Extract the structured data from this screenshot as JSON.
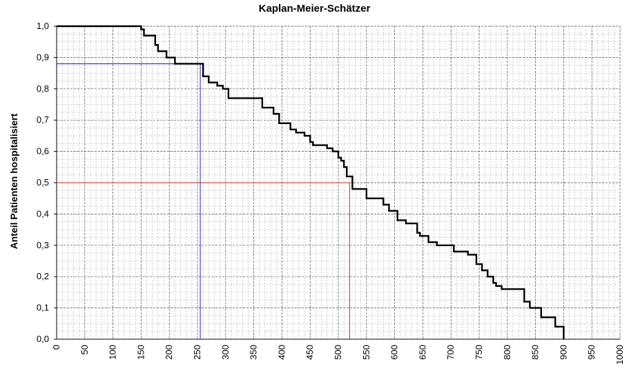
{
  "chart_data": {
    "type": "line",
    "title": "Kaplan-Meier-Schätzer",
    "xlabel": "",
    "ylabel": "Anteil Patienten hospitalisiert",
    "xlim": [
      0,
      1000
    ],
    "ylim": [
      0,
      1
    ],
    "x_ticks": [
      "0",
      "50",
      "100",
      "150",
      "200",
      "250",
      "300",
      "350",
      "400",
      "450",
      "500",
      "550",
      "600",
      "650",
      "700",
      "750",
      "800",
      "850",
      "900",
      "950",
      "1000"
    ],
    "y_ticks": [
      "0,0",
      "0,1",
      "0,2",
      "0,3",
      "0,4",
      "0,5",
      "0,6",
      "0,7",
      "0,8",
      "0,9",
      "1,0"
    ],
    "grid": true,
    "series": [
      {
        "x": [
          0,
          150,
          155,
          160,
          175,
          180,
          195,
          210,
          255,
          260,
          270,
          285,
          295,
          305,
          335,
          365,
          385,
          395,
          415,
          425,
          440,
          450,
          455,
          480,
          490,
          500,
          505,
          510,
          515,
          525,
          550,
          580,
          590,
          605,
          620,
          640,
          645,
          660,
          675,
          705,
          730,
          745,
          755,
          765,
          775,
          780,
          790,
          830,
          840,
          860,
          885,
          900
        ],
        "y": [
          1.0,
          0.99,
          0.97,
          0.97,
          0.94,
          0.92,
          0.9,
          0.88,
          0.88,
          0.84,
          0.82,
          0.81,
          0.8,
          0.77,
          0.77,
          0.74,
          0.72,
          0.69,
          0.67,
          0.66,
          0.65,
          0.63,
          0.62,
          0.61,
          0.6,
          0.58,
          0.57,
          0.55,
          0.52,
          0.48,
          0.45,
          0.43,
          0.41,
          0.38,
          0.37,
          0.34,
          0.33,
          0.31,
          0.3,
          0.28,
          0.27,
          0.24,
          0.22,
          0.2,
          0.18,
          0.17,
          0.16,
          0.12,
          0.1,
          0.07,
          0.04,
          0.0
        ]
      }
    ],
    "reference_lines": [
      {
        "color": "#2222aa",
        "y": 0.88,
        "x": 255
      },
      {
        "color": "#cc2222",
        "y": 0.5,
        "x": 520
      }
    ]
  },
  "colors": {
    "curve": "#000000",
    "grid": "#9a9a9a",
    "ref_blue": "#2222aa",
    "ref_red": "#cc2222"
  }
}
